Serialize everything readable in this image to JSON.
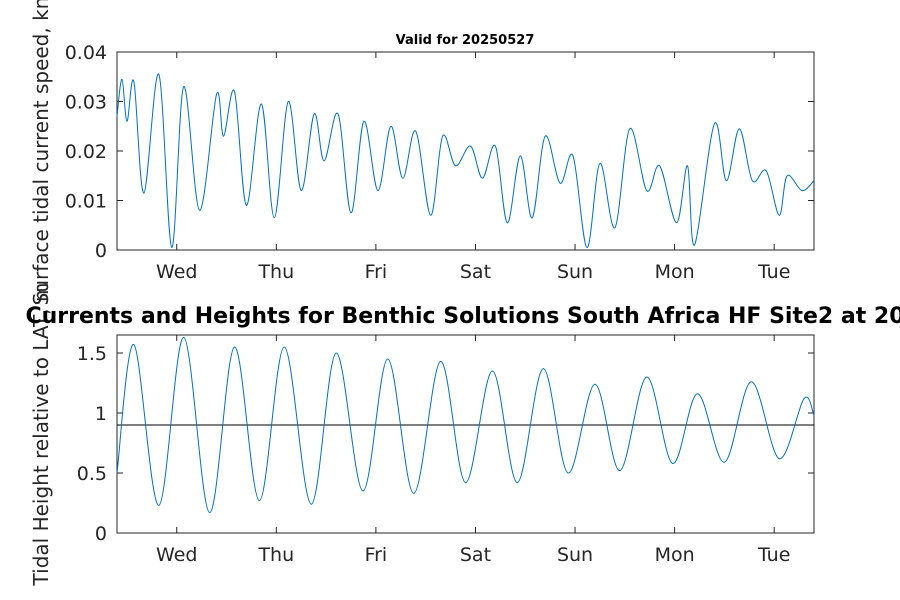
{
  "figure": {
    "main_title": "Currents and Heights for Benthic Solutions South Africa HF Site2 at 20",
    "sub_title": "Valid for 20250527"
  },
  "chart_data": [
    {
      "type": "line",
      "name": "current-speed",
      "ylabel": "Surface tidal current speed, kn",
      "xlabel": "",
      "ylim": [
        0,
        0.04
      ],
      "y_ticks": [
        "0",
        "0.01",
        "0.02",
        "0.03",
        "0.04"
      ],
      "xlim": [
        0,
        7
      ],
      "x_tick_labels": [
        "Wed",
        "Thu",
        "Fri",
        "Sat",
        "Sun",
        "Mon",
        "Tue"
      ],
      "x_tick_days": [
        0.6,
        1.6,
        2.6,
        3.6,
        4.6,
        5.6,
        6.6
      ],
      "line_color": "#0072BD",
      "series": [
        {
          "x_days": [
            0.0,
            0.05,
            0.1,
            0.17,
            0.27,
            0.42,
            0.55,
            0.67,
            0.83,
            1.0,
            1.07,
            1.18,
            1.3,
            1.45,
            1.58,
            1.72,
            1.85,
            1.98,
            2.08,
            2.22,
            2.35,
            2.48,
            2.62,
            2.75,
            2.87,
            3.0,
            3.15,
            3.27,
            3.4,
            3.55,
            3.67,
            3.8,
            3.92,
            4.05,
            4.17,
            4.3,
            4.45,
            4.58,
            4.72,
            4.85,
            5.0,
            5.15,
            5.32,
            5.45,
            5.62,
            5.73,
            5.8,
            6.0,
            6.12,
            6.25,
            6.38,
            6.52,
            6.65,
            6.73,
            6.88,
            7.0
          ],
          "values": [
            0.027,
            0.0345,
            0.026,
            0.034,
            0.0115,
            0.0355,
            0.0005,
            0.033,
            0.008,
            0.0315,
            0.023,
            0.032,
            0.009,
            0.0295,
            0.0065,
            0.03,
            0.012,
            0.0275,
            0.018,
            0.0275,
            0.0075,
            0.026,
            0.012,
            0.025,
            0.0145,
            0.024,
            0.007,
            0.023,
            0.017,
            0.021,
            0.0145,
            0.021,
            0.0055,
            0.019,
            0.0065,
            0.023,
            0.0135,
            0.019,
            0.0005,
            0.0175,
            0.0045,
            0.0245,
            0.012,
            0.017,
            0.0055,
            0.017,
            0.001,
            0.0255,
            0.014,
            0.0245,
            0.014,
            0.016,
            0.007,
            0.015,
            0.012,
            0.014
          ]
        }
      ]
    },
    {
      "type": "line",
      "name": "tidal-height",
      "ylabel": "Tidal Height relative to LAT, m",
      "xlabel": "",
      "ylim": [
        0,
        1.65
      ],
      "y_ticks": [
        "0",
        "0.5",
        "1",
        "1.5"
      ],
      "xlim": [
        0,
        7
      ],
      "x_tick_labels": [
        "Wed",
        "Thu",
        "Fri",
        "Sat",
        "Sun",
        "Mon",
        "Tue"
      ],
      "x_tick_days": [
        0.6,
        1.6,
        2.6,
        3.6,
        4.6,
        5.6,
        6.6
      ],
      "line_color": "#0072BD",
      "reference_level": 0.9,
      "series": [
        {
          "x_days": [
            0.0,
            0.17,
            0.42,
            0.67,
            0.93,
            1.18,
            1.43,
            1.68,
            1.95,
            2.2,
            2.47,
            2.72,
            2.98,
            3.25,
            3.5,
            3.77,
            4.02,
            4.28,
            4.53,
            4.8,
            5.05,
            5.32,
            5.58,
            5.83,
            6.1,
            6.37,
            6.65,
            6.9,
            7.0
          ],
          "values": [
            0.5,
            1.57,
            0.23,
            1.63,
            0.17,
            1.55,
            0.27,
            1.55,
            0.24,
            1.5,
            0.35,
            1.45,
            0.33,
            1.43,
            0.42,
            1.35,
            0.42,
            1.37,
            0.5,
            1.24,
            0.52,
            1.3,
            0.58,
            1.16,
            0.59,
            1.26,
            0.62,
            1.12,
            0.98
          ]
        }
      ]
    }
  ]
}
